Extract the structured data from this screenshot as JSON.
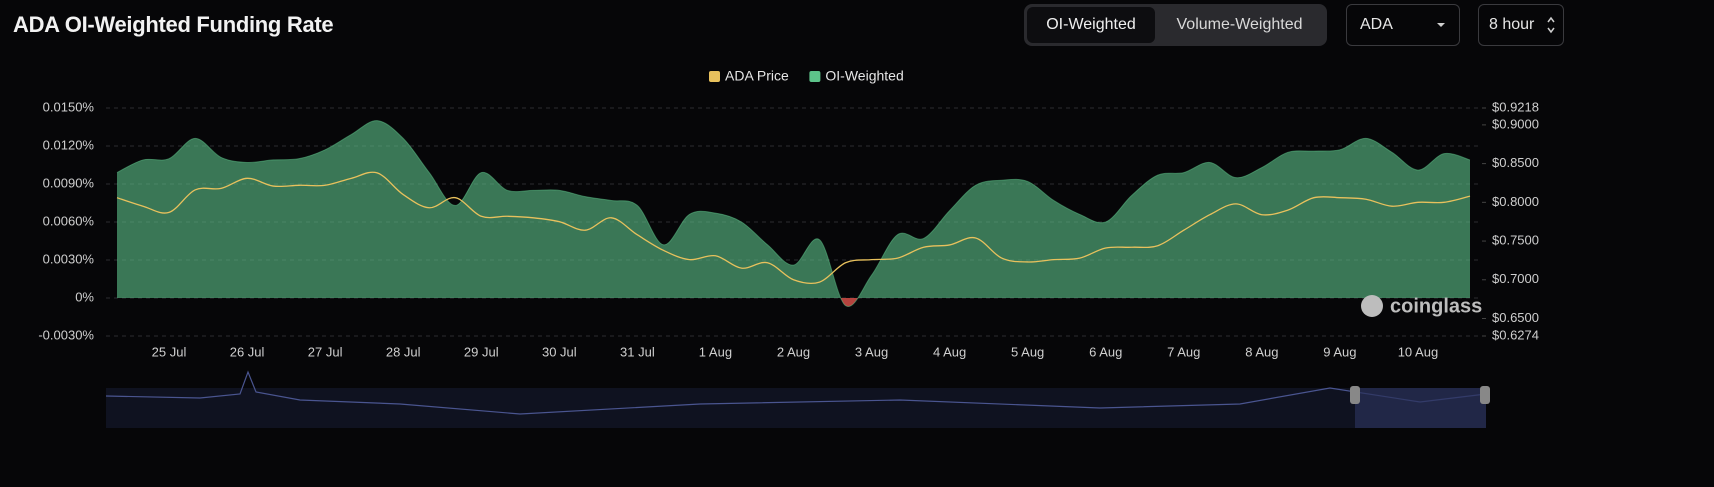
{
  "header": {
    "title": "ADA OI-Weighted Funding Rate"
  },
  "controls": {
    "tabs": [
      "OI-Weighted",
      "Volume-Weighted"
    ],
    "symbol": "ADA",
    "interval": "8 hour"
  },
  "watermark": "coinglass",
  "chart_data": {
    "type": "line",
    "categories": [
      null,
      null,
      "25 Jul",
      null,
      null,
      "26 Jul",
      null,
      null,
      "27 Jul",
      null,
      null,
      "28 Jul",
      null,
      null,
      "29 Jul",
      null,
      null,
      "30 Jul",
      null,
      null,
      "31 Jul",
      null,
      null,
      "1 Aug",
      null,
      null,
      "2 Aug",
      null,
      null,
      "3 Aug",
      null,
      null,
      "4 Aug",
      null,
      null,
      "5 Aug",
      null,
      null,
      "6 Aug",
      null,
      null,
      "7 Aug",
      null,
      null,
      "8 Aug",
      null,
      null,
      "9 Aug",
      null,
      null,
      "10 Aug",
      null,
      null
    ],
    "series": [
      {
        "name": "ADA Price",
        "color": "#e8c15d",
        "type": "line",
        "axis": "y2",
        "values": [
          0.806,
          0.795,
          0.787,
          0.816,
          0.818,
          0.831,
          0.821,
          0.822,
          0.822,
          0.831,
          0.838,
          0.81,
          0.793,
          0.806,
          0.782,
          0.782,
          0.78,
          0.775,
          0.764,
          0.78,
          0.758,
          0.738,
          0.726,
          0.731,
          0.715,
          0.722,
          0.7,
          0.697,
          0.722,
          0.726,
          0.728,
          0.742,
          0.745,
          0.754,
          0.728,
          0.723,
          0.726,
          0.728,
          0.741,
          0.742,
          0.744,
          0.764,
          0.784,
          0.798,
          0.784,
          0.79,
          0.806,
          0.806,
          0.804,
          0.795,
          0.8,
          0.8,
          0.808
        ]
      },
      {
        "name": "OI-Weighted",
        "color": "#5dc38a",
        "negative_color": "#c94a45",
        "type": "area",
        "axis": "y",
        "values": [
          0.0099,
          0.0109,
          0.011,
          0.0126,
          0.0111,
          0.0107,
          0.0109,
          0.011,
          0.0117,
          0.0129,
          0.014,
          0.0126,
          0.0099,
          0.0073,
          0.0099,
          0.0085,
          0.0085,
          0.0085,
          0.008,
          0.0077,
          0.0073,
          0.0042,
          0.0066,
          0.0067,
          0.006,
          0.0042,
          0.0026,
          0.0046,
          -0.0006,
          0.0018,
          0.005,
          0.0047,
          0.0069,
          0.0089,
          0.0093,
          0.0092,
          0.0077,
          0.0066,
          0.006,
          0.0081,
          0.0097,
          0.0099,
          0.0107,
          0.0095,
          0.0103,
          0.0115,
          0.0116,
          0.0117,
          0.0126,
          0.0115,
          0.0101,
          0.0114,
          0.0109
        ]
      }
    ],
    "ylim": [
      -0.003,
      0.015
    ],
    "yticks": [
      {
        "value": -0.003,
        "label": "-0.0030%"
      },
      {
        "value": 0,
        "label": "0%"
      },
      {
        "value": 0.003,
        "label": "0.0030%"
      },
      {
        "value": 0.006,
        "label": "0.0060%"
      },
      {
        "value": 0.009,
        "label": "0.0090%"
      },
      {
        "value": 0.012,
        "label": "0.0120%"
      },
      {
        "value": 0.015,
        "label": "0.0150%"
      }
    ],
    "y2lim": [
      0.6274,
      0.9218
    ],
    "y2ticks": [
      {
        "value": 0.6274,
        "label": "$0.6274"
      },
      {
        "value": 0.65,
        "label": "$0.6500"
      },
      {
        "value": 0.7,
        "label": "$0.7000"
      },
      {
        "value": 0.75,
        "label": "$0.7500"
      },
      {
        "value": 0.8,
        "label": "$0.8000"
      },
      {
        "value": 0.85,
        "label": "$0.8500"
      },
      {
        "value": 0.9,
        "label": "$0.9000"
      },
      {
        "value": 0.9218,
        "label": "$0.9218"
      }
    ],
    "grid": true,
    "legend": "top"
  }
}
